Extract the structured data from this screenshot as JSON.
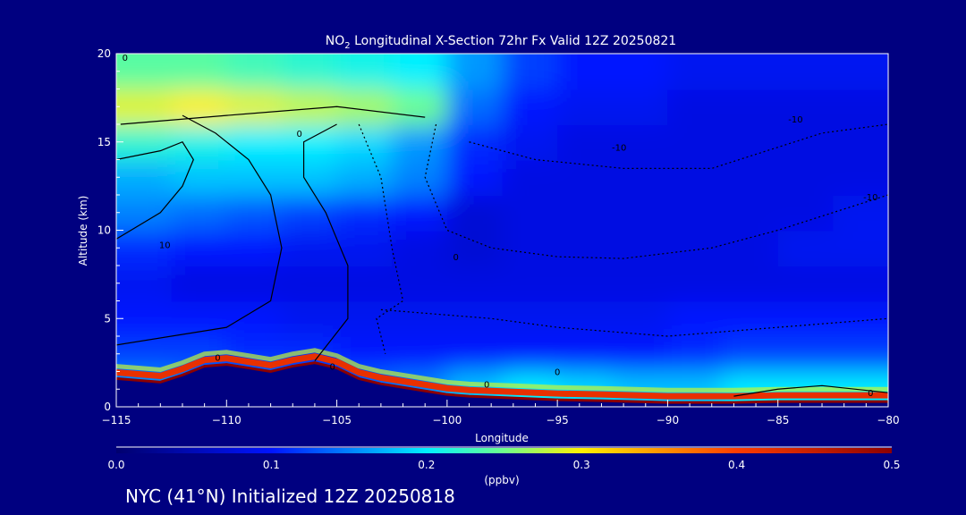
{
  "chart_data": {
    "type": "heatmap",
    "title": "NO2 Longitudinal X-Section 72hr  Fx Valid 12Z 20250821",
    "title_main": "NO",
    "title_sub": "2",
    "title_rest": " Longitudinal X-Section 72hr  Fx Valid 12Z 20250821",
    "xlabel": "Longitude",
    "ylabel": "Altitude (km)",
    "xlim": [
      -115,
      -80
    ],
    "ylim": [
      0,
      20
    ],
    "x_ticks": [
      -115,
      -110,
      -105,
      -100,
      -95,
      -90,
      -85,
      -80
    ],
    "x_tick_labels": [
      "−115",
      "−110",
      "−105",
      "−100",
      "−95",
      "−90",
      "−85",
      "−80"
    ],
    "y_ticks": [
      0,
      5,
      10,
      15,
      20
    ],
    "y_tick_labels": [
      "0",
      "5",
      "10",
      "15",
      "20"
    ],
    "x_centers": [
      -113.75,
      -111.25,
      -108.75,
      -106.25,
      -103.75,
      -101.25,
      -98.75,
      -96.25,
      -93.75,
      -91.25,
      -88.75,
      -86.25,
      -83.75,
      -81.25
    ],
    "y_centers": [
      1,
      3,
      5,
      7,
      9,
      11,
      13,
      15,
      17,
      19
    ],
    "values": [
      [
        0.16,
        0.15,
        0.15,
        0.14,
        0.14,
        0.15,
        0.18,
        0.2,
        0.19,
        0.18,
        0.18,
        0.2,
        0.2,
        0.2
      ],
      [
        0.12,
        0.12,
        0.11,
        0.11,
        0.1,
        0.1,
        0.1,
        0.1,
        0.1,
        0.1,
        0.11,
        0.12,
        0.12,
        0.12
      ],
      [
        0.1,
        0.1,
        0.1,
        0.09,
        0.09,
        0.09,
        0.09,
        0.09,
        0.09,
        0.09,
        0.1,
        0.1,
        0.1,
        0.1
      ],
      [
        0.09,
        0.08,
        0.08,
        0.08,
        0.08,
        0.08,
        0.08,
        0.08,
        0.08,
        0.08,
        0.08,
        0.08,
        0.08,
        0.08
      ],
      [
        0.11,
        0.1,
        0.1,
        0.09,
        0.09,
        0.08,
        0.07,
        0.08,
        0.08,
        0.08,
        0.08,
        0.08,
        0.09,
        0.09
      ],
      [
        0.15,
        0.14,
        0.13,
        0.12,
        0.11,
        0.1,
        0.07,
        0.08,
        0.08,
        0.08,
        0.08,
        0.08,
        0.08,
        0.09
      ],
      [
        0.17,
        0.18,
        0.18,
        0.18,
        0.17,
        0.15,
        0.1,
        0.08,
        0.08,
        0.08,
        0.08,
        0.08,
        0.08,
        0.08
      ],
      [
        0.22,
        0.21,
        0.2,
        0.2,
        0.19,
        0.16,
        0.11,
        0.09,
        0.08,
        0.08,
        0.08,
        0.08,
        0.08,
        0.08
      ],
      [
        0.29,
        0.3,
        0.29,
        0.28,
        0.27,
        0.25,
        0.14,
        0.1,
        0.09,
        0.09,
        0.08,
        0.08,
        0.08,
        0.08
      ],
      [
        0.24,
        0.24,
        0.23,
        0.22,
        0.21,
        0.2,
        0.16,
        0.12,
        0.1,
        0.1,
        0.09,
        0.09,
        0.09,
        0.09
      ]
    ],
    "terrain": {
      "lon": [
        -115,
        -114,
        -113,
        -112,
        -111,
        -110,
        -109,
        -108,
        -107,
        -106,
        -105,
        -104,
        -103,
        -102,
        -101,
        -100,
        -99,
        -98,
        -97,
        -96,
        -95,
        -93,
        -90,
        -87,
        -85,
        -83,
        -80
      ],
      "alt": [
        1.6,
        1.5,
        1.4,
        1.8,
        2.3,
        2.4,
        2.2,
        2.0,
        2.3,
        2.5,
        2.2,
        1.6,
        1.3,
        1.1,
        0.9,
        0.7,
        0.6,
        0.55,
        0.5,
        0.45,
        0.4,
        0.35,
        0.25,
        0.25,
        0.3,
        0.3,
        0.3
      ]
    },
    "contours": [
      {
        "level": "10",
        "lon": [
          -115,
          -113,
          -112,
          -111.5,
          -112,
          -113,
          -115
        ],
        "alt": [
          9.5,
          11,
          12.5,
          14,
          15,
          14.5,
          14
        ]
      },
      {
        "level": "0",
        "lon": [
          -115,
          -110,
          -108,
          -107.5,
          -108,
          -109,
          -110.5,
          -112
        ],
        "alt": [
          3.5,
          4.5,
          6,
          9,
          12,
          14,
          15.5,
          16.5
        ]
      },
      {
        "level": "0",
        "lon": [
          -106,
          -104.5,
          -104.5,
          -105.5,
          -106.5,
          -106.5,
          -105
        ],
        "alt": [
          2.6,
          5,
          8,
          11,
          13,
          15,
          16
        ]
      },
      {
        "level": "0",
        "lon": [
          -114.8,
          -110,
          -105,
          -101
        ],
        "alt": [
          16,
          16.5,
          17,
          16.4
        ]
      },
      {
        "level": "-10",
        "lon": [
          -104,
          -103,
          -102.5,
          -102,
          -103.2,
          -102.8
        ],
        "alt": [
          16,
          13,
          9,
          6,
          5,
          3
        ]
      },
      {
        "level": "-10",
        "lon": [
          -100.5,
          -101,
          -100,
          -98,
          -95,
          -92,
          -88,
          -85,
          -80
        ],
        "alt": [
          16,
          13,
          10,
          9,
          8.5,
          8.4,
          9,
          10,
          12
        ]
      },
      {
        "level": "-10",
        "lon": [
          -103,
          -98,
          -95,
          -90,
          -85,
          -80
        ],
        "alt": [
          5.5,
          5,
          4.5,
          4,
          4.5,
          5
        ]
      },
      {
        "level": "-10",
        "lon": [
          -99,
          -96,
          -92,
          -88,
          -83,
          -80
        ],
        "alt": [
          15,
          14,
          13.5,
          13.5,
          15.5,
          16
        ]
      },
      {
        "level": "0",
        "lon": [
          -87,
          -85,
          -83,
          -80
        ],
        "alt": [
          0.6,
          1.0,
          1.2,
          0.8
        ]
      }
    ],
    "contour_labels": [
      {
        "text": "10",
        "lon": -112.8,
        "alt": 9.2
      },
      {
        "text": "0",
        "lon": -110.4,
        "alt": 2.8
      },
      {
        "text": "0",
        "lon": -106.7,
        "alt": 15.5
      },
      {
        "text": "0",
        "lon": -114.6,
        "alt": 19.8
      },
      {
        "text": "0",
        "lon": -105.2,
        "alt": 2.3
      },
      {
        "text": "0",
        "lon": -99.6,
        "alt": 8.5
      },
      {
        "text": "0",
        "lon": -98.2,
        "alt": 1.3
      },
      {
        "text": "0",
        "lon": -95,
        "alt": 2.0
      },
      {
        "text": "0",
        "lon": -80.8,
        "alt": 0.8
      },
      {
        "text": "-10",
        "lon": -84.2,
        "alt": 16.3
      },
      {
        "text": "-10",
        "lon": -92.2,
        "alt": 14.7
      },
      {
        "text": "-10",
        "lon": -80.8,
        "alt": 11.9
      }
    ],
    "colorbar": {
      "range": [
        0,
        0.5
      ],
      "ticks": [
        0.0,
        0.1,
        0.2,
        0.3,
        0.4,
        0.5
      ],
      "tick_labels": [
        "0.0",
        "0.1",
        "0.2",
        "0.3",
        "0.4",
        "0.5"
      ],
      "label": "(ppbv)"
    }
  },
  "footer": "NYC (41°N) Initialized 12Z 20250818",
  "colors": {
    "background": "#000080",
    "terrain": "#000080",
    "contour": "#000000",
    "text": "#ffffff"
  }
}
